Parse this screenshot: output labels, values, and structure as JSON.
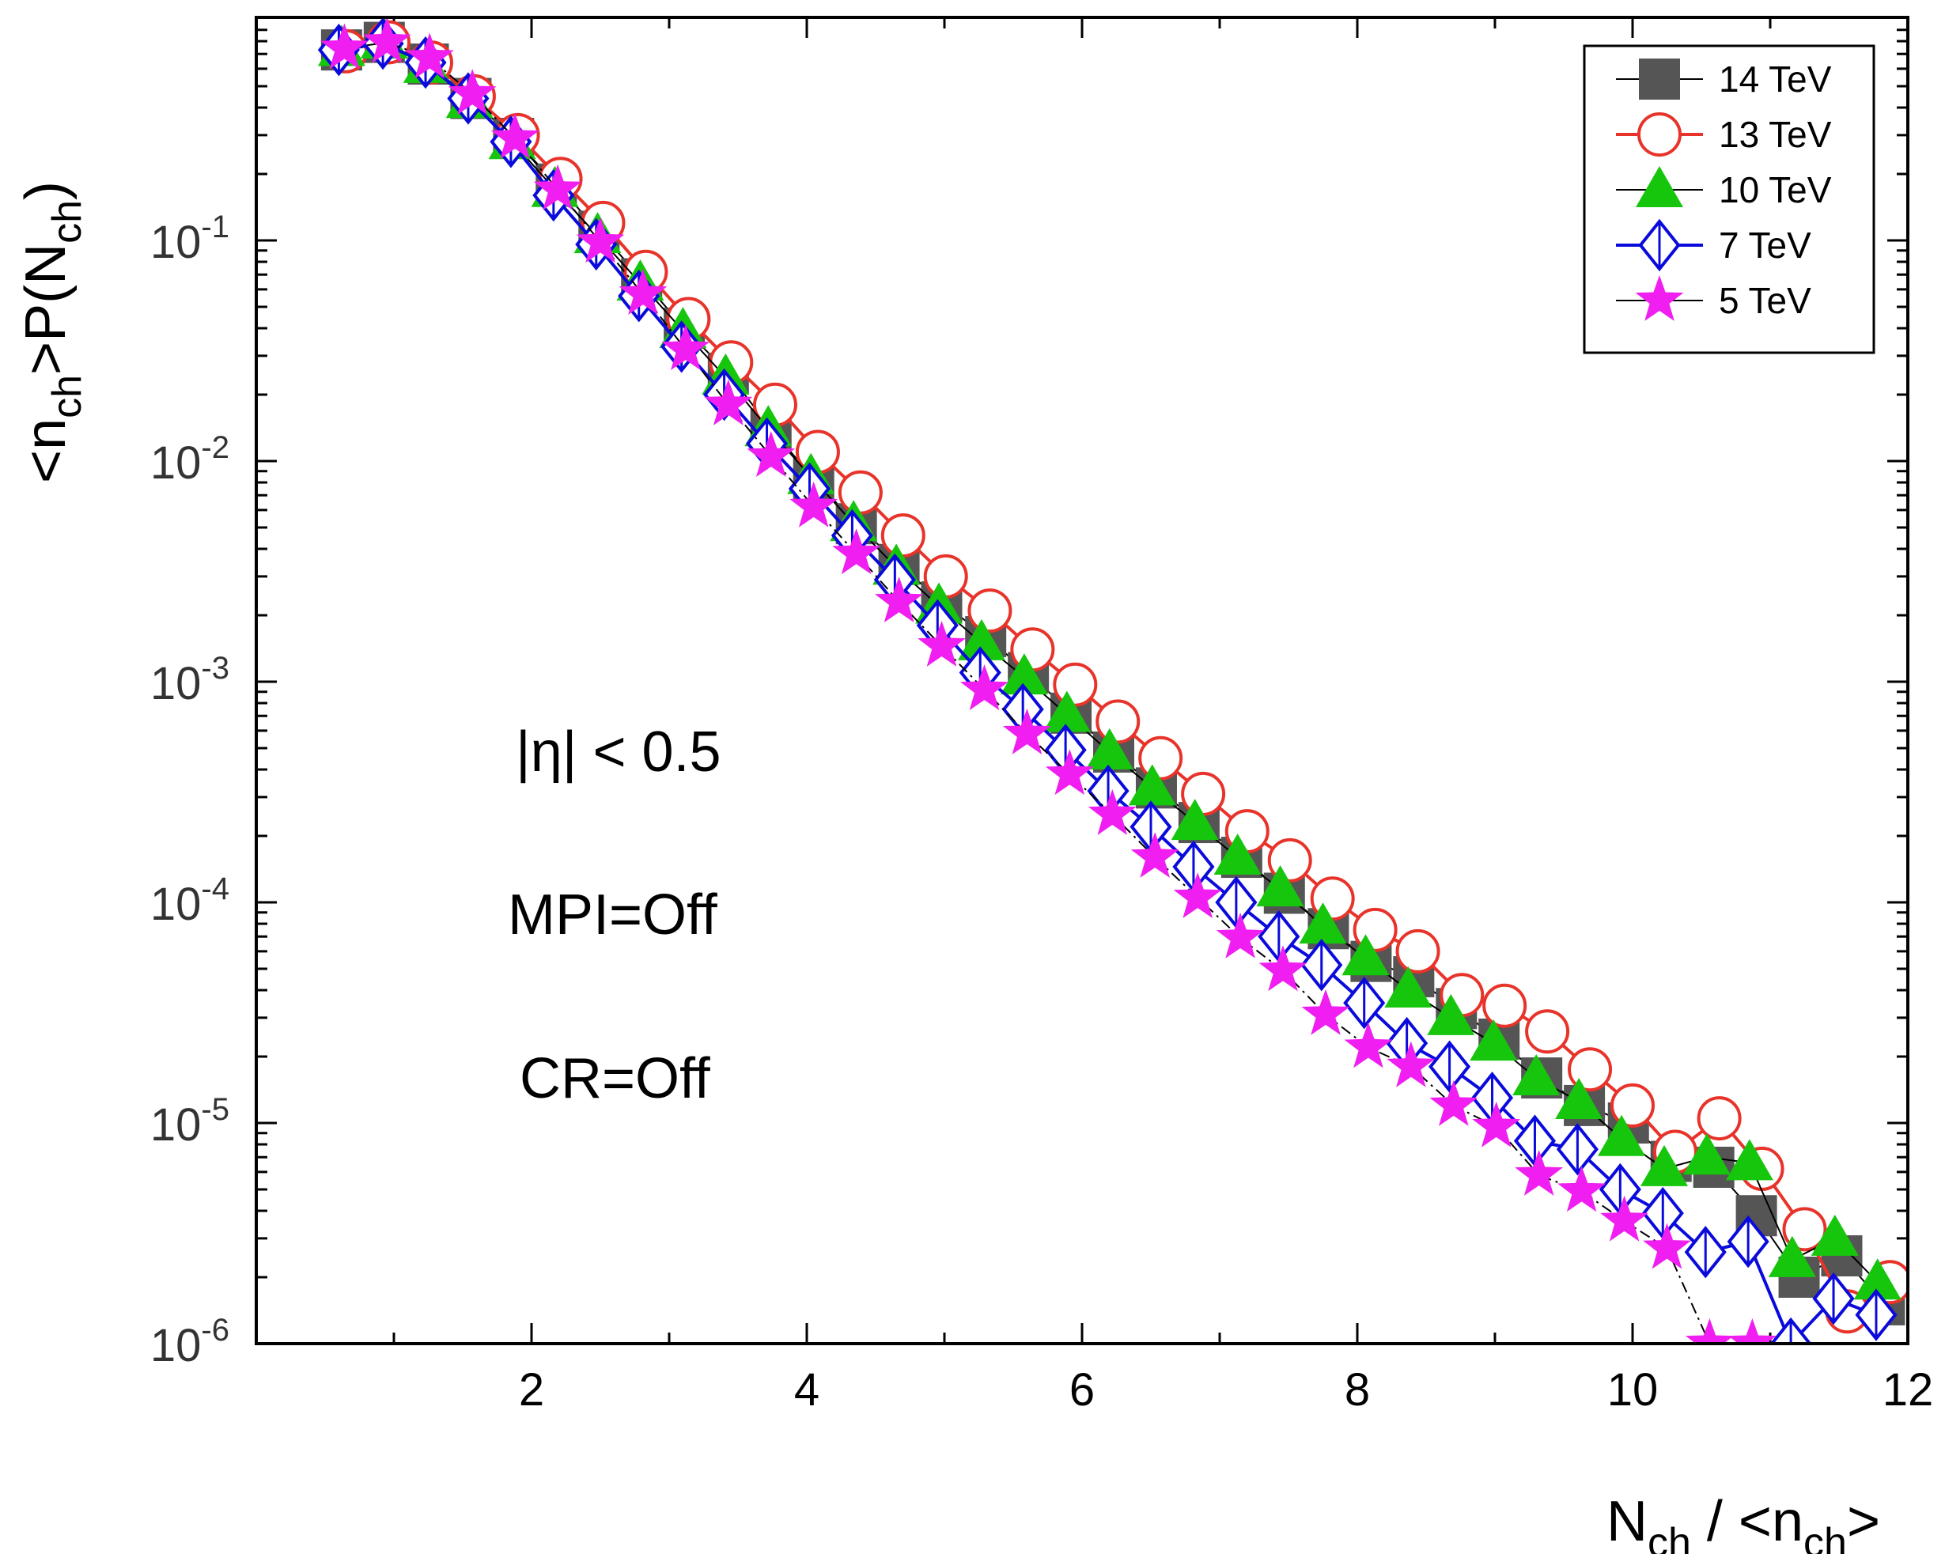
{
  "chart_data": {
    "type": "scatter",
    "title": "",
    "xlabel": "N_ch / <n_ch>",
    "ylabel": "<n_ch>P(N_ch)",
    "xlabel_parts": {
      "main": "N",
      "sub": "ch",
      "rest": " / <n",
      "sub2": "ch",
      "end": ">"
    },
    "ylabel_parts": {
      "a": "<n",
      "sub1": "ch",
      "b": ">P(N",
      "sub2": "ch",
      "c": ")"
    },
    "xlim": [
      0,
      12
    ],
    "ylim": [
      1e-06,
      0.95
    ],
    "yscale": "log",
    "x_ticks": [
      "2",
      "4",
      "6",
      "8",
      "10",
      "12"
    ],
    "y_ticks": [
      {
        "base": "10",
        "exp": "-1"
      },
      {
        "base": "10",
        "exp": "-2"
      },
      {
        "base": "10",
        "exp": "-3"
      },
      {
        "base": "10",
        "exp": "-4"
      },
      {
        "base": "10",
        "exp": "-5"
      },
      {
        "base": "10",
        "exp": "-6"
      }
    ],
    "legend_position": "top-right",
    "annotations": [
      "|η| < 0.5",
      "MPI=Off",
      "CR=Off"
    ],
    "series": [
      {
        "name": "14 TeV",
        "color": "#555555",
        "marker": "square",
        "line": "solid",
        "line_color": "#000000",
        "x": [
          0.62,
          0.93,
          1.25,
          1.56,
          1.87,
          2.18,
          2.49,
          2.8,
          3.11,
          3.43,
          3.74,
          4.05,
          4.36,
          4.67,
          4.98,
          5.3,
          5.61,
          5.92,
          6.23,
          6.54,
          6.85,
          7.16,
          7.47,
          7.79,
          8.1,
          8.41,
          8.72,
          9.03,
          9.34,
          9.65,
          9.97,
          10.28,
          10.59,
          10.9,
          11.21,
          11.52,
          11.83
        ],
        "y": [
          0.73,
          0.79,
          0.63,
          0.44,
          0.29,
          0.18,
          0.11,
          0.067,
          0.04,
          0.025,
          0.014,
          0.0083,
          0.0052,
          0.0034,
          0.0023,
          0.0016,
          0.0011,
          0.00072,
          0.00048,
          0.00033,
          0.00023,
          0.00016,
          0.00011,
          7.6e-05,
          5.4e-05,
          4.6e-05,
          3.3e-05,
          2.4e-05,
          1.6e-05,
          1.2e-05,
          1e-05,
          6.7e-06,
          6.3e-06,
          3.8e-06,
          2e-06,
          2.5e-06,
          1.5e-06
        ]
      },
      {
        "name": "13 TeV",
        "color": "#e8332a",
        "marker": "circle-open",
        "line": "solid",
        "line_color": "#e8332a",
        "x": [
          0.65,
          0.96,
          1.27,
          1.58,
          1.9,
          2.21,
          2.52,
          2.83,
          3.14,
          3.45,
          3.77,
          4.08,
          4.39,
          4.7,
          5.01,
          5.33,
          5.64,
          5.95,
          6.26,
          6.57,
          6.88,
          7.2,
          7.51,
          7.82,
          8.13,
          8.44,
          8.76,
          9.07,
          9.38,
          9.69,
          10.0,
          10.31,
          10.63,
          10.94,
          11.25,
          11.56,
          11.87
        ],
        "y": [
          0.72,
          0.79,
          0.64,
          0.45,
          0.3,
          0.19,
          0.12,
          0.072,
          0.044,
          0.028,
          0.018,
          0.011,
          0.0072,
          0.0046,
          0.003,
          0.0021,
          0.0014,
          0.00097,
          0.00066,
          0.00045,
          0.00031,
          0.00021,
          0.000155,
          0.000104,
          7.5e-05,
          6e-05,
          3.8e-05,
          3.4e-05,
          2.6e-05,
          1.75e-05,
          1.2e-05,
          7.4e-06,
          1.05e-05,
          6.2e-06,
          3.3e-06,
          1.4e-06,
          1.9e-06
        ]
      },
      {
        "name": "10 TeV",
        "color": "#16c60c",
        "marker": "triangle",
        "line": "solid",
        "line_color": "#000000",
        "x": [
          0.62,
          0.93,
          1.24,
          1.55,
          1.86,
          2.17,
          2.48,
          2.79,
          3.1,
          3.41,
          3.72,
          4.03,
          4.34,
          4.65,
          4.96,
          5.27,
          5.58,
          5.89,
          6.2,
          6.51,
          6.82,
          7.13,
          7.44,
          7.75,
          8.06,
          8.37,
          8.68,
          8.99,
          9.3,
          9.61,
          9.92,
          10.23,
          10.54,
          10.85,
          11.16,
          11.47,
          11.78
        ],
        "y": [
          0.74,
          0.8,
          0.62,
          0.43,
          0.28,
          0.17,
          0.105,
          0.064,
          0.039,
          0.024,
          0.014,
          0.0085,
          0.0052,
          0.0033,
          0.0022,
          0.0015,
          0.00105,
          0.00071,
          0.00048,
          0.00033,
          0.00023,
          0.00016,
          0.000115,
          7.8e-05,
          5.6e-05,
          4e-05,
          3e-05,
          2.3e-05,
          1.6e-05,
          1.25e-05,
          8.5e-06,
          6.2e-06,
          7e-06,
          6.6e-06,
          2.4e-06,
          3e-06,
          1.9e-06
        ]
      },
      {
        "name": "7 TeV",
        "color": "#0a0adc",
        "marker": "diamond-open",
        "line": "solid",
        "line_color": "#0a0adc",
        "x": [
          0.6,
          0.92,
          1.23,
          1.54,
          1.85,
          2.16,
          2.47,
          2.78,
          3.09,
          3.4,
          3.71,
          4.02,
          4.33,
          4.64,
          4.95,
          5.26,
          5.57,
          5.88,
          6.19,
          6.5,
          6.81,
          7.12,
          7.43,
          7.74,
          8.05,
          8.36,
          8.67,
          8.98,
          9.29,
          9.6,
          9.91,
          10.22,
          10.53,
          10.84,
          11.15,
          11.46,
          11.77
        ],
        "y": [
          0.73,
          0.78,
          0.64,
          0.44,
          0.28,
          0.16,
          0.096,
          0.056,
          0.033,
          0.02,
          0.012,
          0.0075,
          0.0046,
          0.0029,
          0.0018,
          0.0011,
          0.00075,
          0.00049,
          0.00032,
          0.00022,
          0.000145,
          0.0001,
          7e-05,
          5.2e-05,
          3.5e-05,
          2.3e-05,
          1.8e-05,
          1.3e-05,
          8.3e-06,
          7.6e-06,
          5e-06,
          3.9e-06,
          2.6e-06,
          2.9e-06,
          1e-06,
          1.6e-06,
          1.35e-06
        ]
      },
      {
        "name": "5 TeV",
        "color": "#f01ef0",
        "marker": "star",
        "line": "dashdot",
        "line_color": "#000000",
        "x": [
          0.64,
          0.95,
          1.26,
          1.57,
          1.88,
          2.19,
          2.5,
          2.81,
          3.12,
          3.43,
          3.74,
          4.05,
          4.36,
          4.67,
          4.98,
          5.29,
          5.6,
          5.91,
          6.22,
          6.53,
          6.84,
          7.15,
          7.46,
          7.77,
          8.08,
          8.39,
          8.7,
          9.01,
          9.32,
          9.63,
          9.94,
          10.25,
          10.56,
          10.87
        ],
        "y": [
          0.74,
          0.79,
          0.67,
          0.46,
          0.29,
          0.17,
          0.098,
          0.057,
          0.032,
          0.018,
          0.0105,
          0.0062,
          0.0038,
          0.0023,
          0.00145,
          0.00092,
          0.00058,
          0.00038,
          0.00025,
          0.00016,
          0.000105,
          6.9e-05,
          4.9e-05,
          3.1e-05,
          2.2e-05,
          1.8e-05,
          1.2e-05,
          9.6e-06,
          5.8e-06,
          4.9e-06,
          3.6e-06,
          2.7e-06,
          1e-06,
          1e-06
        ]
      }
    ]
  }
}
